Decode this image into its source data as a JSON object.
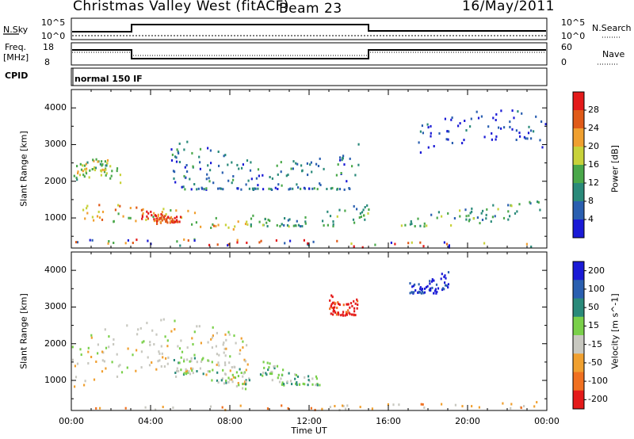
{
  "header": {
    "station": "Christmas Valley West (fitACF)",
    "beam": "Beam 23",
    "date": "16/May/2011"
  },
  "ctl_panel_1": {
    "left_label": "N.Sky",
    "right_label": "N.Search",
    "left_ticks": [
      "10^5",
      "10^0"
    ],
    "right_ticks": [
      "10^5",
      "10^0"
    ]
  },
  "ctl_panel_2": {
    "left_label_line1": "Freq.",
    "left_label_line2": "[MHz]",
    "right_label": "Nave",
    "left_ticks": [
      "18",
      "8"
    ],
    "right_ticks": [
      "60",
      "0"
    ]
  },
  "cpid": {
    "label": "CPID",
    "value": "normal 150 IF"
  },
  "chart_data": [
    {
      "type": "heatmap",
      "title": "Power",
      "ylabel": "Slant Range [km]",
      "xlabel": "",
      "ylim": [
        180,
        4500
      ],
      "yticks": [
        1000,
        2000,
        3000,
        4000
      ],
      "x_ticks": [
        "00:00",
        "04:00",
        "08:00",
        "12:00",
        "16:00",
        "20:00",
        "00:00"
      ],
      "colorbar": {
        "label": "Power [dB]",
        "ticks": [
          "4",
          "8",
          "12",
          "16",
          "20",
          "24",
          "28"
        ],
        "colors": [
          "#1a1ad6",
          "#2a5fb0",
          "#2a8a7a",
          "#4aa84a",
          "#c8d23a",
          "#f0a030",
          "#e05a18",
          "#e41a1a"
        ]
      },
      "features": [
        {
          "t0": 0.0,
          "t1": 2.5,
          "r0": 1950,
          "r1": 2650,
          "level": "moderate-high"
        },
        {
          "t0": 0.5,
          "t1": 9.0,
          "r0": 700,
          "r1": 1400,
          "level": "high"
        },
        {
          "t0": 3.5,
          "t1": 5.5,
          "r0": 900,
          "r1": 1300,
          "level": "peak"
        },
        {
          "t0": 5.0,
          "t1": 14.5,
          "r0": 1800,
          "r1": 3800,
          "level": "low-moderate"
        },
        {
          "t0": 9.0,
          "t1": 15.0,
          "r0": 800,
          "r1": 1500,
          "level": "moderate"
        },
        {
          "t0": 16.5,
          "t1": 24.0,
          "r0": 800,
          "r1": 1500,
          "level": "moderate"
        },
        {
          "t0": 17.5,
          "t1": 24.0,
          "r0": 2800,
          "r1": 4000,
          "level": "low"
        },
        {
          "t0": 0.0,
          "t1": 24.0,
          "r0": 180,
          "r1": 450,
          "level": "mixed"
        }
      ]
    },
    {
      "type": "heatmap",
      "title": "Velocity",
      "ylabel": "Slant Range [km]",
      "xlabel": "Time UT",
      "ylim": [
        180,
        4500
      ],
      "yticks": [
        1000,
        2000,
        3000,
        4000
      ],
      "x_ticks": [
        "00:00",
        "04:00",
        "08:00",
        "12:00",
        "16:00",
        "20:00",
        "00:00"
      ],
      "colorbar": {
        "label": "Velocity [m s^-1]",
        "ticks": [
          "200",
          "100",
          "50",
          "15",
          "-15",
          "-50",
          "-100",
          "-200"
        ],
        "colors": [
          "#1a1ad6",
          "#2a5fb0",
          "#2a8a7a",
          "#7ad04a",
          "#c8c8c0",
          "#f0a030",
          "#f07020",
          "#e41a1a"
        ]
      },
      "features": [
        {
          "t0": 0.0,
          "t1": 9.0,
          "r0": 700,
          "r1": 2700,
          "level": "ground scatter (grey)"
        },
        {
          "t0": 5.0,
          "t1": 9.0,
          "r0": 900,
          "r1": 1700,
          "level": "positive (green)"
        },
        {
          "t0": 9.5,
          "t1": 12.5,
          "r0": 900,
          "r1": 1600,
          "level": "positive (green)"
        },
        {
          "t0": 13.0,
          "t1": 14.5,
          "r0": 2800,
          "r1": 3600,
          "level": "strong negative (red)"
        },
        {
          "t0": 17.0,
          "t1": 19.0,
          "r0": 3400,
          "r1": 4100,
          "level": "strong positive (blue)"
        },
        {
          "t0": 0.0,
          "t1": 24.0,
          "r0": 180,
          "r1": 450,
          "level": "negative (orange)"
        }
      ]
    }
  ]
}
